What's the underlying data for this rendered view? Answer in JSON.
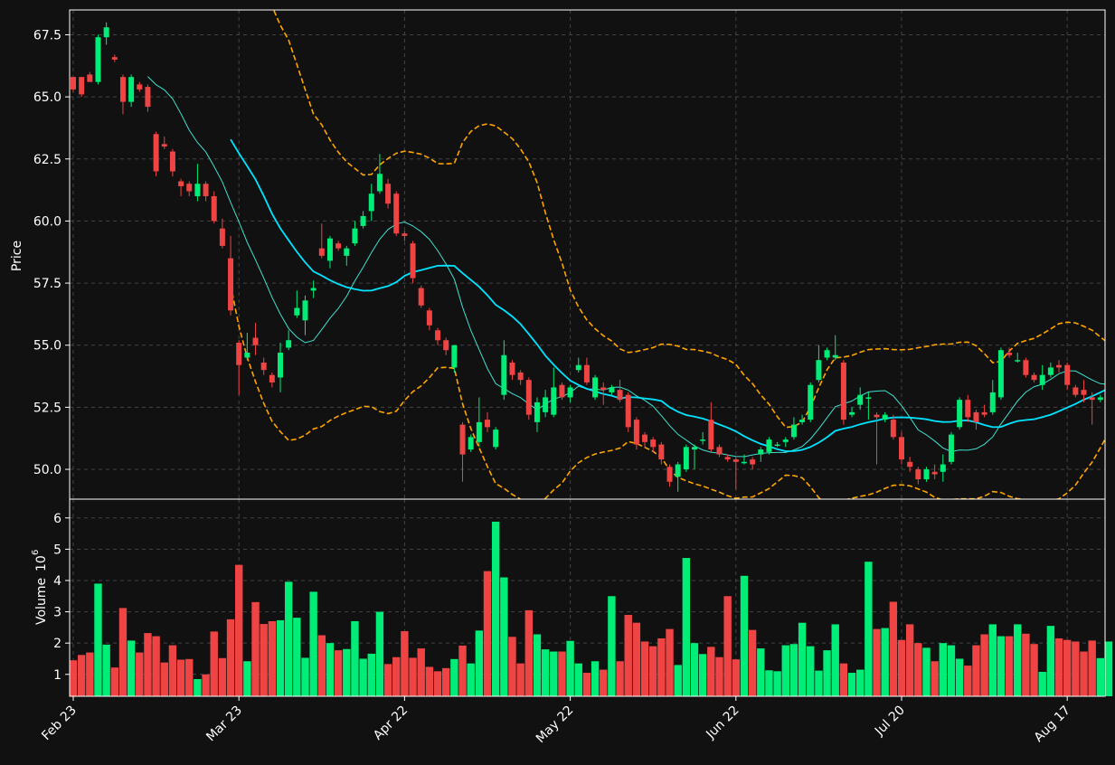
{
  "chart_data": {
    "type": "candlestick",
    "x_tick_labels": [
      "Feb 23",
      "Mar 23",
      "Apr 22",
      "May 22",
      "Jun 22",
      "Jul 20",
      "Aug 17"
    ],
    "price_panel": {
      "ylabel": "Price",
      "ylim": [
        48.8,
        68.5
      ],
      "y_ticks": [
        50.0,
        52.5,
        55.0,
        57.5,
        60.0,
        62.5,
        65.0,
        67.5
      ],
      "grid": true
    },
    "volume_panel": {
      "ylabel": "Volume",
      "ylabel_exponent": "10",
      "ylabel_power": "6",
      "ylim": [
        0.3,
        6.6
      ],
      "y_ticks": [
        1,
        2,
        3,
        4,
        5,
        6
      ],
      "grid": true
    },
    "colors": {
      "background": "#111111",
      "up": "#00ee77",
      "down": "#ee4444",
      "ma_thin": "#40e0d0",
      "ma_thick": "#00e5ff",
      "band": "#ffa500",
      "grid": "#444444",
      "axis": "#ffffff"
    },
    "candles": [
      [
        65.8,
        65.3,
        65.7,
        65.2,
        1.45
      ],
      [
        65.8,
        65.1,
        65.8,
        65.0,
        1.62
      ],
      [
        65.9,
        65.6,
        66.0,
        65.7,
        1.7
      ],
      [
        65.6,
        67.4,
        67.5,
        65.5,
        3.9
      ],
      [
        67.4,
        67.8,
        68.0,
        67.1,
        1.95
      ],
      [
        66.6,
        66.5,
        66.7,
        66.4,
        1.22
      ],
      [
        65.8,
        64.8,
        65.9,
        64.3,
        3.12
      ],
      [
        64.8,
        65.8,
        65.9,
        64.6,
        2.08
      ],
      [
        65.5,
        65.3,
        65.6,
        65.2,
        1.7
      ],
      [
        65.4,
        64.6,
        65.5,
        64.4,
        2.32
      ],
      [
        63.5,
        62.0,
        63.6,
        61.8,
        2.22
      ],
      [
        63.1,
        63.0,
        63.4,
        62.9,
        1.38
      ],
      [
        62.8,
        62.0,
        62.9,
        61.8,
        1.93
      ],
      [
        61.6,
        61.4,
        61.7,
        61.0,
        1.47
      ],
      [
        61.5,
        61.2,
        61.6,
        61.0,
        1.49
      ],
      [
        61.0,
        61.5,
        62.3,
        60.8,
        0.85
      ],
      [
        61.5,
        61.0,
        61.6,
        60.8,
        1.0
      ],
      [
        61.0,
        60.0,
        61.2,
        59.9,
        2.37
      ],
      [
        59.7,
        59.0,
        60.1,
        58.9,
        1.52
      ],
      [
        58.5,
        56.4,
        59.4,
        56.2,
        2.76
      ],
      [
        55.1,
        54.2,
        55.2,
        53.0,
        4.5
      ],
      [
        54.5,
        54.7,
        55.5,
        54.4,
        1.42
      ],
      [
        55.3,
        55.0,
        55.9,
        54.6,
        3.31
      ],
      [
        54.3,
        54.0,
        54.5,
        53.8,
        2.61
      ],
      [
        53.8,
        53.5,
        53.9,
        53.3,
        2.7
      ],
      [
        53.7,
        54.7,
        55.1,
        53.1,
        2.73
      ],
      [
        54.9,
        55.2,
        55.6,
        54.8,
        3.96
      ],
      [
        56.2,
        56.5,
        57.2,
        56.1,
        2.81
      ],
      [
        56.0,
        56.8,
        57.0,
        55.4,
        1.53
      ],
      [
        57.2,
        57.3,
        57.6,
        56.9,
        3.64
      ],
      [
        58.9,
        58.6,
        59.9,
        58.5,
        2.25
      ],
      [
        58.4,
        59.3,
        59.4,
        58.1,
        2.0
      ],
      [
        59.1,
        58.9,
        59.2,
        58.8,
        1.77
      ],
      [
        58.6,
        58.9,
        59.0,
        58.2,
        1.81
      ],
      [
        59.1,
        59.7,
        60.0,
        59.0,
        2.7
      ],
      [
        59.8,
        60.2,
        60.4,
        59.7,
        1.5
      ],
      [
        60.4,
        61.1,
        61.5,
        60.0,
        1.66
      ],
      [
        61.2,
        61.9,
        62.7,
        61.1,
        3.0
      ],
      [
        61.5,
        60.7,
        61.7,
        60.5,
        1.33
      ],
      [
        61.1,
        59.5,
        61.2,
        59.4,
        1.55
      ],
      [
        59.5,
        59.4,
        59.6,
        59.2,
        2.38
      ],
      [
        59.1,
        57.7,
        59.2,
        57.5,
        1.53
      ],
      [
        57.3,
        56.6,
        57.4,
        56.5,
        1.83
      ],
      [
        56.4,
        55.8,
        56.5,
        55.6,
        1.24
      ],
      [
        55.6,
        55.2,
        55.7,
        55.0,
        1.1
      ],
      [
        55.2,
        54.8,
        55.3,
        54.6,
        1.2
      ],
      [
        54.1,
        55.0,
        55.0,
        53.9,
        1.49
      ],
      [
        51.8,
        50.6,
        51.9,
        49.5,
        1.92
      ],
      [
        50.8,
        51.3,
        51.4,
        50.7,
        1.35
      ],
      [
        51.1,
        51.9,
        52.9,
        50.9,
        2.4
      ],
      [
        52.0,
        51.7,
        52.3,
        51.5,
        4.3
      ],
      [
        50.9,
        51.6,
        51.7,
        50.8,
        5.88
      ],
      [
        53.0,
        54.6,
        55.2,
        52.8,
        4.1
      ],
      [
        54.3,
        53.8,
        54.4,
        53.6,
        2.2
      ],
      [
        53.9,
        53.6,
        54.0,
        53.4,
        1.35
      ],
      [
        53.6,
        52.2,
        53.7,
        52.0,
        3.05
      ],
      [
        51.9,
        52.7,
        52.9,
        51.5,
        2.28
      ],
      [
        52.3,
        52.9,
        53.2,
        52.1,
        1.8
      ],
      [
        52.2,
        53.3,
        54.1,
        52.1,
        1.73
      ],
      [
        53.4,
        52.9,
        53.5,
        52.8,
        1.73
      ],
      [
        52.9,
        53.3,
        53.4,
        52.7,
        2.07
      ],
      [
        54.0,
        54.2,
        54.5,
        53.9,
        1.35
      ],
      [
        54.2,
        53.5,
        54.5,
        53.4,
        1.05
      ],
      [
        52.9,
        53.7,
        53.8,
        52.8,
        1.42
      ],
      [
        53.3,
        53.2,
        53.5,
        52.6,
        1.15
      ],
      [
        53.1,
        53.3,
        53.4,
        53.0,
        3.5
      ],
      [
        53.2,
        52.8,
        53.6,
        52.7,
        1.42
      ],
      [
        53.0,
        51.7,
        53.1,
        51.5,
        2.9
      ],
      [
        52.0,
        51.0,
        52.1,
        50.8,
        2.65
      ],
      [
        51.4,
        51.1,
        51.5,
        50.9,
        2.05
      ],
      [
        51.2,
        50.9,
        51.3,
        50.7,
        1.9
      ],
      [
        51.0,
        50.4,
        51.1,
        50.2,
        2.15
      ],
      [
        50.1,
        49.5,
        50.2,
        49.3,
        2.45
      ],
      [
        49.7,
        50.2,
        50.3,
        49.1,
        1.3
      ],
      [
        50.0,
        50.9,
        51.0,
        49.9,
        4.72
      ],
      [
        50.8,
        50.9,
        51.0,
        50.0,
        2.0
      ],
      [
        51.2,
        51.2,
        51.5,
        51.0,
        1.65
      ],
      [
        52.0,
        50.8,
        52.7,
        50.7,
        1.88
      ],
      [
        50.9,
        50.6,
        51.0,
        50.5,
        1.55
      ],
      [
        50.5,
        50.4,
        50.6,
        50.3,
        3.5
      ],
      [
        50.4,
        50.3,
        50.5,
        49.2,
        1.48
      ],
      [
        50.3,
        50.3,
        50.6,
        50.2,
        4.15
      ],
      [
        50.4,
        50.2,
        50.5,
        50.0,
        2.42
      ],
      [
        50.6,
        50.8,
        50.9,
        50.3,
        1.83
      ],
      [
        50.7,
        51.2,
        51.3,
        50.6,
        1.13
      ],
      [
        51.0,
        51.0,
        51.1,
        50.9,
        1.1
      ],
      [
        51.1,
        51.2,
        51.3,
        50.9,
        1.93
      ],
      [
        51.3,
        51.8,
        52.1,
        51.2,
        1.97
      ],
      [
        51.9,
        52.0,
        52.2,
        51.8,
        2.65
      ],
      [
        52.0,
        53.4,
        53.5,
        51.9,
        1.9
      ],
      [
        53.6,
        54.4,
        55.0,
        53.5,
        1.12
      ],
      [
        54.5,
        54.8,
        54.9,
        54.4,
        1.77
      ],
      [
        54.5,
        54.6,
        55.4,
        54.4,
        2.6
      ],
      [
        54.3,
        52.0,
        54.4,
        51.8,
        1.35
      ],
      [
        52.2,
        52.3,
        52.5,
        52.1,
        1.05
      ],
      [
        52.6,
        53.0,
        53.3,
        52.4,
        1.15
      ],
      [
        52.9,
        52.9,
        53.1,
        52.0,
        4.6
      ],
      [
        52.2,
        52.1,
        52.3,
        50.2,
        2.45
      ],
      [
        52.0,
        52.2,
        52.3,
        51.9,
        2.48
      ],
      [
        52.0,
        51.3,
        52.2,
        51.2,
        3.32
      ],
      [
        51.3,
        50.4,
        51.5,
        50.2,
        2.1
      ],
      [
        50.3,
        50.1,
        50.5,
        49.9,
        2.6
      ],
      [
        50.0,
        49.6,
        50.1,
        49.4,
        2.0
      ],
      [
        49.6,
        50.0,
        50.1,
        49.5,
        1.85
      ],
      [
        49.9,
        49.8,
        50.2,
        49.6,
        1.42
      ],
      [
        49.9,
        50.2,
        50.6,
        49.5,
        2.0
      ],
      [
        50.3,
        51.4,
        51.5,
        50.2,
        1.93
      ],
      [
        51.7,
        52.8,
        52.9,
        51.6,
        1.5
      ],
      [
        52.8,
        52.1,
        53.0,
        51.9,
        1.28
      ],
      [
        52.3,
        51.9,
        52.4,
        51.6,
        1.93
      ],
      [
        52.3,
        52.2,
        52.6,
        52.1,
        2.28
      ],
      [
        52.3,
        53.1,
        53.6,
        52.2,
        2.6
      ],
      [
        52.9,
        54.8,
        54.9,
        52.8,
        2.22
      ],
      [
        54.7,
        54.6,
        54.9,
        54.5,
        2.22
      ],
      [
        54.4,
        54.4,
        54.7,
        54.3,
        2.6
      ],
      [
        54.4,
        53.8,
        54.5,
        53.7,
        2.3
      ],
      [
        53.8,
        53.6,
        53.9,
        53.5,
        1.97
      ],
      [
        53.4,
        53.8,
        54.2,
        53.2,
        1.08
      ],
      [
        53.8,
        54.1,
        54.3,
        53.7,
        2.55
      ],
      [
        54.2,
        54.1,
        54.4,
        53.9,
        2.15
      ],
      [
        54.2,
        53.4,
        54.3,
        53.2,
        2.1
      ],
      [
        53.3,
        53.0,
        53.4,
        52.9,
        2.05
      ],
      [
        53.2,
        53.0,
        53.6,
        52.7,
        1.73
      ],
      [
        52.9,
        52.8,
        53.1,
        51.8,
        2.08
      ],
      [
        52.8,
        52.9,
        53.0,
        52.7,
        1.52
      ],
      [
        52.6,
        53.5,
        53.6,
        52.5,
        2.05
      ]
    ]
  }
}
